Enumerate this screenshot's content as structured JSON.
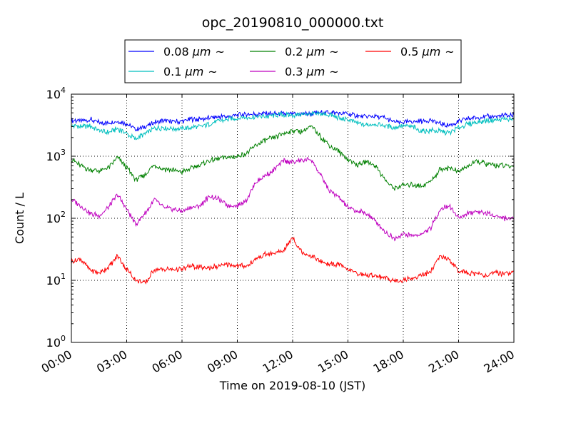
{
  "chart_data": {
    "type": "line",
    "title": "opc_20190810_000000.txt",
    "xlabel": "Time on 2019-08-10 (JST)",
    "ylabel": "Count / L",
    "x_unit": "hours",
    "xlim": [
      0,
      24
    ],
    "ylim": [
      1,
      10000
    ],
    "y_scale": "log",
    "grid": true,
    "grid_style": "dotted",
    "legend_position": "top-center-outside",
    "legend_columns": 3,
    "x_ticks": [
      {
        "value": 0,
        "label": "00:00"
      },
      {
        "value": 3,
        "label": "03:00"
      },
      {
        "value": 6,
        "label": "06:00"
      },
      {
        "value": 9,
        "label": "09:00"
      },
      {
        "value": 12,
        "label": "12:00"
      },
      {
        "value": 15,
        "label": "15:00"
      },
      {
        "value": 18,
        "label": "18:00"
      },
      {
        "value": 21,
        "label": "21:00"
      },
      {
        "value": 24,
        "label": "24:00"
      }
    ],
    "y_ticks": [
      {
        "value": 1,
        "base": "10",
        "exp": "0"
      },
      {
        "value": 10,
        "base": "10",
        "exp": "1"
      },
      {
        "value": 100,
        "base": "10",
        "exp": "2"
      },
      {
        "value": 1000,
        "base": "10",
        "exp": "3"
      },
      {
        "value": 10000,
        "base": "10",
        "exp": "4"
      }
    ],
    "series": [
      {
        "name": "0.08 μm ~",
        "legend_prefix": "0.08 ",
        "legend_unit": "μm",
        "legend_suffix": "~",
        "color": "#0000ff",
        "points": [
          [
            0,
            3800
          ],
          [
            0.5,
            3700
          ],
          [
            1,
            3900
          ],
          [
            1.5,
            3500
          ],
          [
            2,
            3400
          ],
          [
            2.5,
            3700
          ],
          [
            3,
            3300
          ],
          [
            3.5,
            2700
          ],
          [
            4,
            3000
          ],
          [
            4.5,
            3500
          ],
          [
            5,
            3700
          ],
          [
            5.5,
            3600
          ],
          [
            6,
            3700
          ],
          [
            6.5,
            3900
          ],
          [
            7,
            4000
          ],
          [
            7.5,
            4100
          ],
          [
            8,
            4300
          ],
          [
            8.5,
            4400
          ],
          [
            9,
            4600
          ],
          [
            9.5,
            4700
          ],
          [
            10,
            4800
          ],
          [
            10.5,
            4900
          ],
          [
            11,
            4800
          ],
          [
            11.5,
            4800
          ],
          [
            12,
            4700
          ],
          [
            12.5,
            4800
          ],
          [
            13,
            4900
          ],
          [
            13.5,
            5000
          ],
          [
            14,
            5100
          ],
          [
            14.5,
            4900
          ],
          [
            15,
            4800
          ],
          [
            15.5,
            4500
          ],
          [
            16,
            4300
          ],
          [
            16.5,
            4400
          ],
          [
            17,
            4100
          ],
          [
            17.5,
            3600
          ],
          [
            18,
            3500
          ],
          [
            18.5,
            3600
          ],
          [
            19,
            3700
          ],
          [
            19.5,
            3800
          ],
          [
            20,
            3300
          ],
          [
            20.5,
            3200
          ],
          [
            21,
            3600
          ],
          [
            21.5,
            4000
          ],
          [
            22,
            4200
          ],
          [
            22.5,
            4300
          ],
          [
            23,
            4400
          ],
          [
            23.5,
            4500
          ],
          [
            24,
            4600
          ]
        ]
      },
      {
        "name": "0.1 μm ~",
        "legend_prefix": "0.1 ",
        "legend_unit": "μm",
        "legend_suffix": "~",
        "color": "#00bfbf",
        "points": [
          [
            0,
            3100
          ],
          [
            0.5,
            3000
          ],
          [
            1,
            3100
          ],
          [
            1.5,
            2600
          ],
          [
            2,
            2400
          ],
          [
            2.5,
            2800
          ],
          [
            3,
            2300
          ],
          [
            3.5,
            1900
          ],
          [
            4,
            2300
          ],
          [
            4.5,
            2800
          ],
          [
            5,
            2900
          ],
          [
            5.5,
            2800
          ],
          [
            6,
            2800
          ],
          [
            6.5,
            2900
          ],
          [
            7,
            3000
          ],
          [
            7.5,
            3300
          ],
          [
            8,
            3700
          ],
          [
            8.5,
            3900
          ],
          [
            9,
            4100
          ],
          [
            9.5,
            4200
          ],
          [
            10,
            4300
          ],
          [
            10.5,
            4400
          ],
          [
            11,
            4500
          ],
          [
            11.5,
            4600
          ],
          [
            12,
            4600
          ],
          [
            12.5,
            4700
          ],
          [
            13,
            4800
          ],
          [
            13.5,
            4800
          ],
          [
            14,
            4700
          ],
          [
            14.5,
            4100
          ],
          [
            15,
            3900
          ],
          [
            15.5,
            3400
          ],
          [
            16,
            3200
          ],
          [
            16.5,
            3300
          ],
          [
            17,
            3100
          ],
          [
            17.5,
            2900
          ],
          [
            18,
            3100
          ],
          [
            18.5,
            3000
          ],
          [
            19,
            2500
          ],
          [
            19.5,
            2600
          ],
          [
            20,
            2500
          ],
          [
            20.5,
            2400
          ],
          [
            21,
            2900
          ],
          [
            21.5,
            3300
          ],
          [
            22,
            3500
          ],
          [
            22.5,
            3700
          ],
          [
            23,
            3800
          ],
          [
            23.5,
            4000
          ],
          [
            24,
            3900
          ]
        ]
      },
      {
        "name": "0.2 μm ~",
        "legend_prefix": "0.2 ",
        "legend_unit": "μm",
        "legend_suffix": "~",
        "color": "#008000",
        "points": [
          [
            0,
            900
          ],
          [
            0.5,
            700
          ],
          [
            1,
            600
          ],
          [
            1.5,
            580
          ],
          [
            2,
            650
          ],
          [
            2.5,
            950
          ],
          [
            3,
            650
          ],
          [
            3.5,
            420
          ],
          [
            4,
            500
          ],
          [
            4.5,
            720
          ],
          [
            5,
            620
          ],
          [
            5.5,
            600
          ],
          [
            6,
            560
          ],
          [
            6.5,
            640
          ],
          [
            7,
            730
          ],
          [
            7.5,
            850
          ],
          [
            8,
            930
          ],
          [
            8.5,
            960
          ],
          [
            9,
            1000
          ],
          [
            9.5,
            1100
          ],
          [
            10,
            1500
          ],
          [
            10.5,
            1800
          ],
          [
            11,
            2000
          ],
          [
            11.5,
            2300
          ],
          [
            12,
            2600
          ],
          [
            12.5,
            2500
          ],
          [
            13,
            3000
          ],
          [
            13.5,
            2100
          ],
          [
            14,
            1500
          ],
          [
            14.5,
            1200
          ],
          [
            15,
            900
          ],
          [
            15.5,
            720
          ],
          [
            16,
            830
          ],
          [
            16.5,
            700
          ],
          [
            17,
            420
          ],
          [
            17.5,
            300
          ],
          [
            18,
            340
          ],
          [
            18.5,
            350
          ],
          [
            19,
            330
          ],
          [
            19.5,
            400
          ],
          [
            20,
            620
          ],
          [
            20.5,
            650
          ],
          [
            21,
            560
          ],
          [
            21.5,
            700
          ],
          [
            22,
            820
          ],
          [
            22.5,
            750
          ],
          [
            23,
            720
          ],
          [
            23.5,
            700
          ],
          [
            24,
            680
          ]
        ]
      },
      {
        "name": "0.3 μm ~",
        "legend_prefix": "0.3 ",
        "legend_unit": "μm",
        "legend_suffix": "~",
        "color": "#bf00bf",
        "points": [
          [
            0,
            200
          ],
          [
            0.5,
            160
          ],
          [
            1,
            120
          ],
          [
            1.5,
            110
          ],
          [
            2,
            150
          ],
          [
            2.5,
            240
          ],
          [
            3,
            140
          ],
          [
            3.5,
            80
          ],
          [
            4,
            120
          ],
          [
            4.5,
            200
          ],
          [
            5,
            150
          ],
          [
            5.5,
            140
          ],
          [
            6,
            130
          ],
          [
            6.5,
            150
          ],
          [
            7,
            160
          ],
          [
            7.5,
            230
          ],
          [
            8,
            200
          ],
          [
            8.5,
            160
          ],
          [
            9,
            160
          ],
          [
            9.5,
            200
          ],
          [
            10,
            380
          ],
          [
            10.5,
            480
          ],
          [
            11,
            600
          ],
          [
            11.5,
            850
          ],
          [
            12,
            800
          ],
          [
            12.5,
            850
          ],
          [
            13,
            900
          ],
          [
            13.5,
            500
          ],
          [
            14,
            280
          ],
          [
            14.5,
            220
          ],
          [
            15,
            150
          ],
          [
            15.5,
            130
          ],
          [
            16,
            120
          ],
          [
            16.5,
            90
          ],
          [
            17,
            60
          ],
          [
            17.5,
            48
          ],
          [
            18,
            55
          ],
          [
            18.5,
            52
          ],
          [
            19,
            55
          ],
          [
            19.5,
            70
          ],
          [
            20,
            140
          ],
          [
            20.5,
            160
          ],
          [
            21,
            100
          ],
          [
            21.5,
            120
          ],
          [
            22,
            130
          ],
          [
            22.5,
            120
          ],
          [
            23,
            110
          ],
          [
            23.5,
            100
          ],
          [
            24,
            100
          ]
        ]
      },
      {
        "name": "0.5 μm ~",
        "legend_prefix": "0.5 ",
        "legend_unit": "μm",
        "legend_suffix": "~",
        "color": "#ff0000",
        "points": [
          [
            0,
            20
          ],
          [
            0.5,
            22
          ],
          [
            1,
            15
          ],
          [
            1.5,
            13
          ],
          [
            2,
            16
          ],
          [
            2.5,
            25
          ],
          [
            3,
            15
          ],
          [
            3.5,
            10
          ],
          [
            4,
            9
          ],
          [
            4.5,
            15
          ],
          [
            5,
            15
          ],
          [
            5.5,
            15
          ],
          [
            6,
            15
          ],
          [
            6.5,
            17
          ],
          [
            7,
            16
          ],
          [
            7.5,
            16
          ],
          [
            8,
            17
          ],
          [
            8.5,
            18
          ],
          [
            9,
            17
          ],
          [
            9.5,
            17
          ],
          [
            10,
            22
          ],
          [
            10.5,
            26
          ],
          [
            11,
            27
          ],
          [
            11.5,
            30
          ],
          [
            12,
            50
          ],
          [
            12.5,
            28
          ],
          [
            13,
            25
          ],
          [
            13.5,
            20
          ],
          [
            14,
            18
          ],
          [
            14.5,
            18
          ],
          [
            15,
            15
          ],
          [
            15.5,
            13
          ],
          [
            16,
            12
          ],
          [
            16.5,
            12
          ],
          [
            17,
            11
          ],
          [
            17.5,
            10
          ],
          [
            18,
            10
          ],
          [
            18.5,
            11
          ],
          [
            19,
            12
          ],
          [
            19.5,
            14
          ],
          [
            20,
            25
          ],
          [
            20.5,
            22
          ],
          [
            21,
            14
          ],
          [
            21.5,
            13
          ],
          [
            22,
            13
          ],
          [
            22.5,
            12
          ],
          [
            23,
            13
          ],
          [
            23.5,
            13
          ],
          [
            24,
            14
          ]
        ]
      }
    ]
  }
}
